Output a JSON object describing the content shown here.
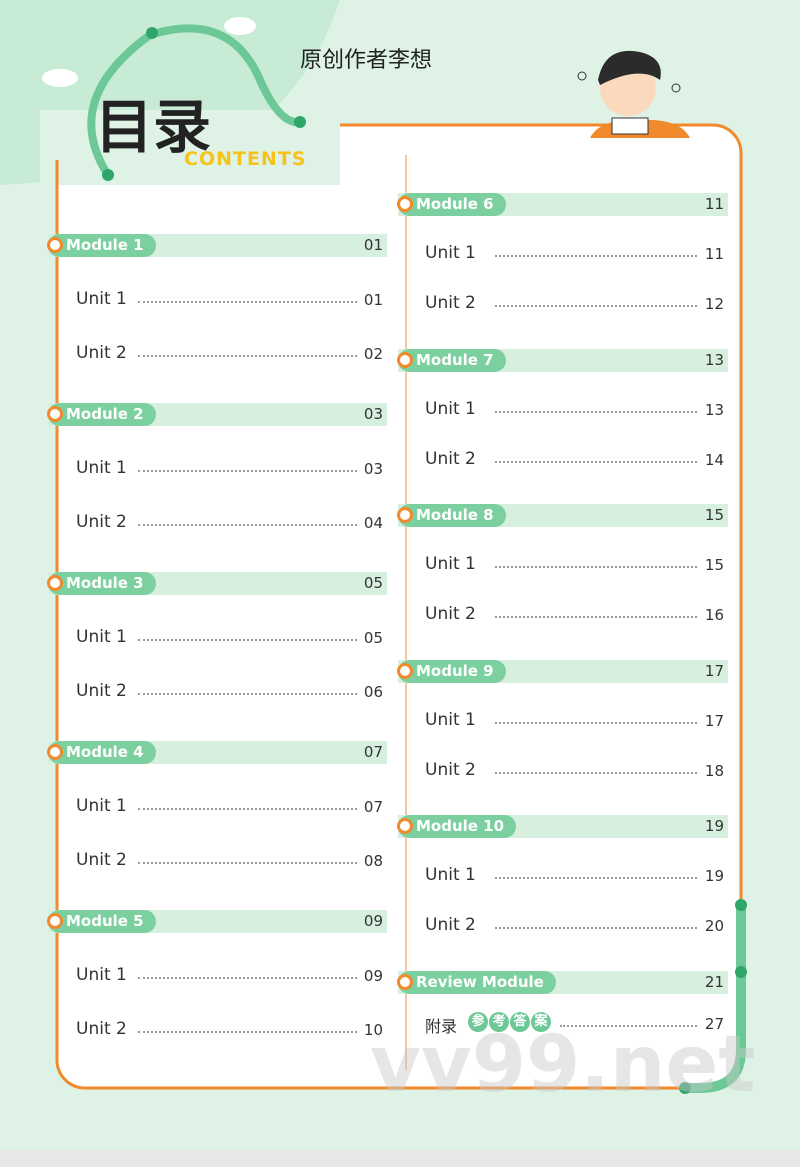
{
  "header": {
    "title": "目录",
    "subtitle": "CONTENTS",
    "author": "原创作者李想"
  },
  "columns": [
    {
      "sections": [
        {
          "title": "Module 1",
          "page": "01",
          "units": [
            {
              "title": "Unit 1",
              "page": "01"
            },
            {
              "title": "Unit 2",
              "page": "02"
            }
          ]
        },
        {
          "title": "Module 2",
          "page": "03",
          "units": [
            {
              "title": "Unit 1",
              "page": "03"
            },
            {
              "title": "Unit 2",
              "page": "04"
            }
          ]
        },
        {
          "title": "Module 3",
          "page": "05",
          "units": [
            {
              "title": "Unit 1",
              "page": "05"
            },
            {
              "title": "Unit 2",
              "page": "06"
            }
          ]
        },
        {
          "title": "Module 4",
          "page": "07",
          "units": [
            {
              "title": "Unit 1",
              "page": "07"
            },
            {
              "title": "Unit 2",
              "page": "08"
            }
          ]
        },
        {
          "title": "Module 5",
          "page": "09",
          "units": [
            {
              "title": "Unit 1",
              "page": "09"
            },
            {
              "title": "Unit 2",
              "page": "10"
            }
          ]
        }
      ]
    },
    {
      "sections": [
        {
          "title": "Module 6",
          "page": "11",
          "units": [
            {
              "title": "Unit 1",
              "page": "11"
            },
            {
              "title": "Unit 2",
              "page": "12"
            }
          ]
        },
        {
          "title": "Module 7",
          "page": "13",
          "units": [
            {
              "title": "Unit 1",
              "page": "13"
            },
            {
              "title": "Unit 2",
              "page": "14"
            }
          ]
        },
        {
          "title": "Module 8",
          "page": "15",
          "units": [
            {
              "title": "Unit 1",
              "page": "15"
            },
            {
              "title": "Unit 2",
              "page": "16"
            }
          ]
        },
        {
          "title": "Module 9",
          "page": "17",
          "units": [
            {
              "title": "Unit 1",
              "page": "17"
            },
            {
              "title": "Unit 2",
              "page": "18"
            }
          ]
        },
        {
          "title": "Module 10",
          "page": "19",
          "units": [
            {
              "title": "Unit 1",
              "page": "19"
            },
            {
              "title": "Unit 2",
              "page": "20"
            }
          ]
        },
        {
          "title": "Review Module",
          "page": "21",
          "units": []
        }
      ]
    }
  ],
  "appendix": {
    "label": "附录",
    "chars": [
      "参",
      "考",
      "答",
      "案"
    ],
    "page": "27"
  },
  "watermark": "vv99.net"
}
